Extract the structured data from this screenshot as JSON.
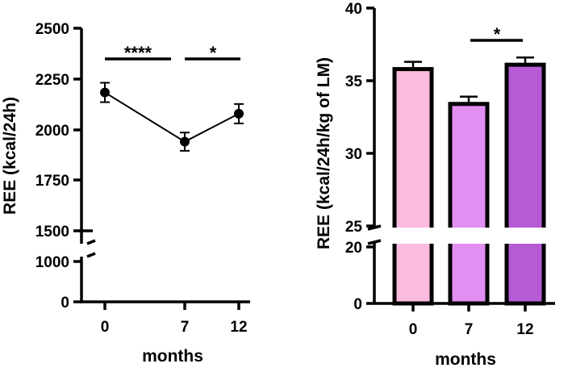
{
  "chart_data": [
    {
      "type": "line",
      "ylabel": "REE (kcal/24h)",
      "xlabel": "months",
      "x_ticks": [
        "0",
        "7",
        "12"
      ],
      "x": [
        0,
        7,
        12
      ],
      "y_ticks_upper": [
        "2500",
        "2250",
        "2000",
        "1750",
        "1500"
      ],
      "y_ticks_lower": [
        "1000",
        "0"
      ],
      "ylim_upper": [
        1500,
        2500
      ],
      "ylim_lower": [
        0,
        1000
      ],
      "axis_break": true,
      "series": [
        {
          "values": [
            2183,
            1940,
            2078
          ],
          "error": [
            48,
            45,
            48
          ],
          "color": "#000000"
        }
      ],
      "significance": [
        {
          "from": "0",
          "to": "7",
          "label": "****"
        },
        {
          "from": "7",
          "to": "12",
          "label": "*"
        }
      ]
    },
    {
      "type": "bar",
      "ylabel": "REE (kcal/24h/kg of LM)",
      "xlabel": "months",
      "categories": [
        "0",
        "7",
        "12"
      ],
      "values": [
        35.8,
        33.4,
        36.1
      ],
      "error": [
        0.5,
        0.5,
        0.5
      ],
      "bar_colors": [
        "#fbbbe0",
        "#e28ef2",
        "#b75ad6"
      ],
      "y_ticks_upper": [
        "40",
        "35",
        "30",
        "25"
      ],
      "y_ticks_lower": [
        "20",
        "0"
      ],
      "ylim_upper": [
        25,
        40
      ],
      "ylim_lower": [
        0,
        20
      ],
      "axis_break": true,
      "significance": [
        {
          "from": "7",
          "to": "12",
          "label": "*"
        }
      ]
    }
  ]
}
